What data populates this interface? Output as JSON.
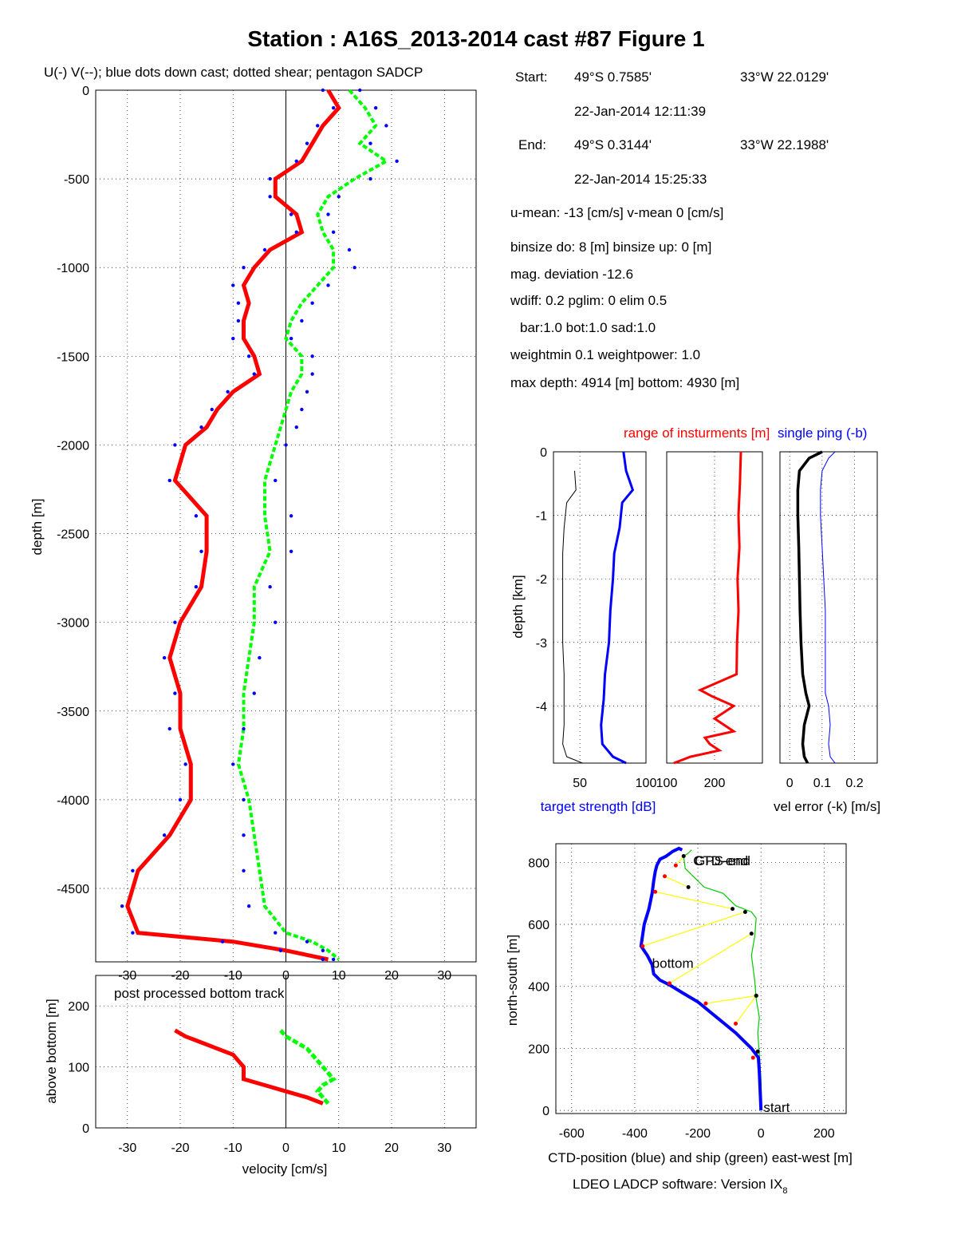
{
  "figure": {
    "title": "Station : A16S_2013-2014 cast #87  Figure 1",
    "legend_caption": "U(-) V(--); blue dots down cast; dotted shear; pentagon SADCP",
    "software": "LDEO LADCP software: Version IX",
    "software_subscript": "8"
  },
  "info": {
    "start_label": "Start:",
    "start_lat": "49°S  0.7585'",
    "start_lon": "33°W 22.0129'",
    "start_time": "22-Jan-2014 12:11:39",
    "end_label": "End:",
    "end_lat": "49°S  0.3144'",
    "end_lon": "33°W 22.1988'",
    "end_time": "22-Jan-2014 15:25:33",
    "means": "u-mean: -13 [cm/s]    v-mean   0 [cm/s]",
    "binsize": "binsize do: 8 [m]  binsize up:  0 [m]",
    "magdev": "mag. deviation -12.6",
    "wdiff": "wdiff: 0.2  pglim: 0  elim 0.5",
    "weights": "bar:1.0 bot:1.0 sad:1.0",
    "weightmin": "weightmin 0.1  weightpower: 1.0",
    "maxdepth": "max depth: 4914 [m]   bottom: 4930 [m]"
  },
  "colors": {
    "u": "#ff0000",
    "v": "#00ff00",
    "downcast": "#0000ff",
    "ship": "#00cc00",
    "link": "#ffff00",
    "black": "#000000"
  },
  "chart_data": [
    {
      "type": "line",
      "name": "velocity profile",
      "xlabel": "velocity [cm/s]",
      "ylabel": "depth [m]",
      "xlim": [
        -36,
        36
      ],
      "ylim": [
        -4914,
        0
      ],
      "xticks": [
        -30,
        -20,
        -10,
        0,
        10,
        20,
        30
      ],
      "yticks": [
        0,
        -500,
        -1000,
        -1500,
        -2000,
        -2500,
        -3000,
        -3500,
        -4000,
        -4500
      ],
      "grid": true,
      "depth": [
        0,
        -100,
        -200,
        -300,
        -400,
        -500,
        -600,
        -700,
        -800,
        -900,
        -1000,
        -1100,
        -1200,
        -1300,
        -1400,
        -1500,
        -1600,
        -1700,
        -1800,
        -1900,
        -2000,
        -2200,
        -2400,
        -2600,
        -2800,
        -3000,
        -3200,
        -3400,
        -3600,
        -3800,
        -4000,
        -4200,
        -4400,
        -4600,
        -4750,
        -4800,
        -4850,
        -4900
      ],
      "series": [
        {
          "name": "U",
          "style": "solid",
          "values": [
            8,
            10,
            7,
            5,
            3,
            -2,
            -2,
            2,
            3,
            -3,
            -6,
            -8,
            -7,
            -8,
            -8,
            -6,
            -5,
            -10,
            -13,
            -15,
            -19,
            -21,
            -15,
            -15,
            -16,
            -20,
            -22,
            -20,
            -20,
            -18,
            -18,
            -22,
            -28,
            -30,
            -28,
            -10,
            0,
            8
          ]
        },
        {
          "name": "V",
          "style": "dashed",
          "values": [
            12,
            15,
            17,
            14,
            19,
            13,
            8,
            6,
            7,
            9,
            9,
            6,
            3,
            1,
            0,
            3,
            3,
            1,
            0,
            -1,
            -2,
            -4,
            -4,
            -3,
            -6,
            -6,
            -7,
            -8,
            -8,
            -9,
            -7,
            -6,
            -5,
            -4,
            0,
            5,
            8,
            10
          ]
        },
        {
          "name": "downcast U",
          "style": "dots",
          "values": [
            7,
            9,
            6,
            4,
            2,
            -3,
            -3,
            1,
            2,
            -4,
            -8,
            -10,
            -9,
            -9,
            -10,
            -7,
            -6,
            -11,
            -14,
            -16,
            -21,
            -22,
            -17,
            -16,
            -17,
            -21,
            -23,
            -21,
            -22,
            -19,
            -20,
            -23,
            -29,
            -31,
            -29,
            -12,
            -1,
            7
          ]
        },
        {
          "name": "downcast V",
          "style": "dots",
          "values": [
            14,
            17,
            19,
            16,
            21,
            16,
            10,
            8,
            9,
            12,
            13,
            8,
            5,
            3,
            1,
            5,
            5,
            4,
            3,
            2,
            0,
            -2,
            1,
            1,
            -3,
            -2,
            -5,
            -6,
            -8,
            -10,
            -8,
            -8,
            -8,
            -7,
            -2,
            4,
            7,
            9
          ]
        }
      ]
    },
    {
      "type": "line",
      "name": "bottom track",
      "annotation": "post processed bottom track",
      "xlabel": "velocity [cm/s]",
      "ylabel": "above bottom [m]",
      "xlim": [
        -36,
        36
      ],
      "ylim": [
        0,
        250
      ],
      "xticks": [
        -30,
        -20,
        -10,
        0,
        10,
        20,
        30
      ],
      "yticks": [
        0,
        100,
        200
      ],
      "grid": true,
      "height": [
        160,
        150,
        140,
        130,
        120,
        110,
        100,
        90,
        80,
        70,
        60,
        50,
        40
      ],
      "series": [
        {
          "name": "U",
          "values": [
            -21,
            -19,
            -16,
            -13,
            -10,
            -9,
            -8,
            -8,
            -8,
            -4,
            0,
            4,
            7
          ]
        },
        {
          "name": "V",
          "values": [
            -1,
            0,
            2,
            4,
            5,
            6,
            7,
            8,
            9,
            7,
            6,
            7,
            8
          ]
        }
      ]
    },
    {
      "type": "line",
      "name": "target strength",
      "title": "",
      "xlabel": "target strength [dB]",
      "ylabel": "depth [km]",
      "xlim": [
        30,
        100
      ],
      "ylim": [
        -4.9,
        0
      ],
      "xticks": [
        50,
        100
      ],
      "yticks": [
        0,
        -1,
        -2,
        -3,
        -4
      ],
      "grid": true,
      "depth": [
        0,
        -0.3,
        -0.6,
        -0.8,
        -1.2,
        -1.6,
        -2.0,
        -2.5,
        -3.0,
        -3.5,
        -3.9,
        -4.3,
        -4.6,
        -4.8,
        -4.9
      ],
      "series": [
        {
          "name": "target strength",
          "values": [
            83,
            85,
            90,
            82,
            80,
            76,
            75,
            73,
            72,
            69,
            68,
            66,
            67,
            75,
            85
          ]
        },
        {
          "name": "noise",
          "values": [
            null,
            46,
            47,
            40,
            38,
            37,
            37,
            37,
            37,
            38,
            38,
            38,
            37,
            40,
            52
          ]
        }
      ]
    },
    {
      "type": "line",
      "name": "range of instruments",
      "title": "range of insturments [m]",
      "xlim": [
        100,
        300
      ],
      "ylim": [
        -4.9,
        0
      ],
      "xticks": [
        100,
        200
      ],
      "grid": true,
      "depth": [
        0,
        -0.5,
        -1.0,
        -1.5,
        -2.0,
        -2.5,
        -3.0,
        -3.5,
        -3.75,
        -3.85,
        -4.0,
        -4.2,
        -4.4,
        -4.5,
        -4.6,
        -4.7,
        -4.8,
        -4.9
      ],
      "series": [
        {
          "name": "range",
          "values": [
            255,
            253,
            250,
            252,
            248,
            250,
            247,
            246,
            170,
            195,
            240,
            200,
            240,
            180,
            190,
            210,
            150,
            115
          ]
        }
      ]
    },
    {
      "type": "line",
      "name": "velocity error",
      "title": "single ping (-b)",
      "xlabel": "vel error (-k) [m/s]",
      "xlim": [
        -0.03,
        0.27
      ],
      "ylim": [
        -4.9,
        0
      ],
      "xticks": [
        0,
        0.1,
        0.2
      ],
      "grid": true,
      "depth": [
        0,
        -0.1,
        -0.3,
        -0.6,
        -1.0,
        -1.5,
        -2.0,
        -2.5,
        -3.0,
        -3.5,
        -3.8,
        -4.0,
        -4.3,
        -4.6,
        -4.8,
        -4.9
      ],
      "series": [
        {
          "name": "vel error (-k)",
          "values": [
            0.1,
            0.06,
            0.03,
            0.025,
            0.025,
            0.028,
            0.03,
            0.032,
            0.035,
            0.04,
            0.05,
            0.06,
            0.045,
            0.04,
            0.045,
            0.055
          ]
        },
        {
          "name": "single ping (-b)",
          "values": [
            0.14,
            0.12,
            0.1,
            0.095,
            0.095,
            0.1,
            0.105,
            0.11,
            0.11,
            0.11,
            0.11,
            0.12,
            0.125,
            0.12,
            0.125,
            0.14
          ]
        }
      ]
    },
    {
      "type": "line",
      "name": "position",
      "xlabel": "CTD-position (blue) and ship (green) east-west [m]",
      "ylabel": "north-south [m]",
      "xlim": [
        -650,
        270
      ],
      "ylim": [
        -10,
        860
      ],
      "xticks": [
        -600,
        -400,
        -200,
        0,
        200
      ],
      "yticks": [
        0,
        200,
        400,
        600,
        800
      ],
      "grid": true,
      "annotations": {
        "start": "start",
        "bottom": "bottom",
        "ctd_end": "CTD-end",
        "gps_end": "GPS-end"
      },
      "series": [
        {
          "name": "CTD",
          "x": [
            0,
            -2,
            -5,
            -8,
            -30,
            -80,
            -140,
            -200,
            -250,
            -290,
            -320,
            -340,
            -345,
            -360,
            -380,
            -370,
            -355,
            -345,
            -340,
            -335,
            -330,
            -320,
            -300,
            -280,
            -260,
            -250
          ],
          "y": [
            0,
            50,
            120,
            170,
            200,
            250,
            300,
            350,
            380,
            405,
            420,
            440,
            470,
            500,
            530,
            600,
            650,
            700,
            740,
            770,
            790,
            810,
            820,
            835,
            845,
            840
          ]
        },
        {
          "name": "ship",
          "x": [
            0,
            0,
            -5,
            -10,
            -5,
            -15,
            -20,
            -30,
            -20,
            -15,
            -30,
            -80,
            -120,
            -180,
            -240,
            -245,
            -230,
            -220
          ],
          "y": [
            0,
            100,
            180,
            250,
            300,
            360,
            420,
            500,
            560,
            620,
            640,
            660,
            700,
            720,
            780,
            820,
            830,
            840
          ]
        },
        {
          "name": "links",
          "x": [
            -25,
            -80,
            -175,
            -290,
            -375,
            -335,
            -305,
            -270
          ],
          "y": [
            170,
            280,
            345,
            410,
            530,
            705,
            755,
            790
          ],
          "x2": [
            -10,
            -15,
            -15,
            -30,
            -50,
            -90,
            -230,
            -245
          ],
          "y2": [
            190,
            370,
            370,
            570,
            640,
            650,
            720,
            820
          ]
        }
      ]
    }
  ]
}
